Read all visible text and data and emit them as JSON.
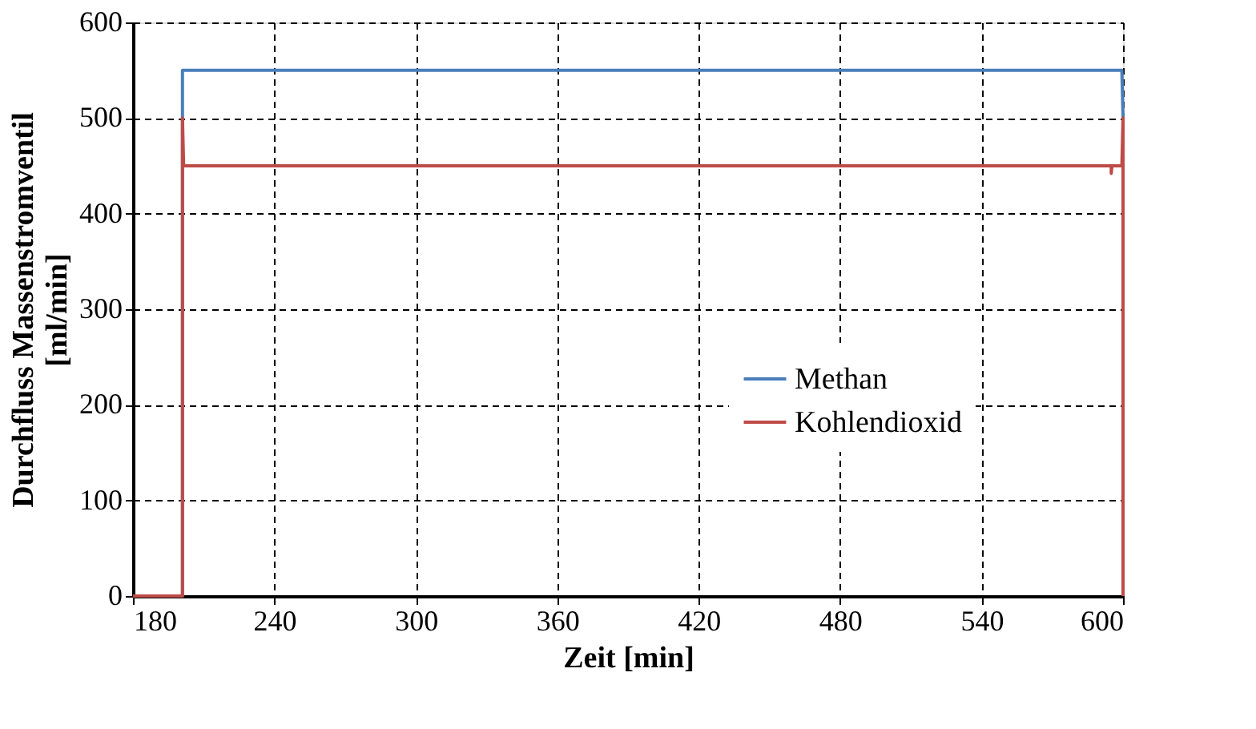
{
  "chart_data": {
    "type": "line",
    "xlabel": "Zeit [min]",
    "ylabel": "Durchfluss Massenstromventil [ml/min]",
    "xlim": [
      180,
      600
    ],
    "xticks": [
      180,
      240,
      300,
      360,
      420,
      480,
      540,
      600
    ],
    "ylim": [
      0,
      600
    ],
    "yticks": [
      0,
      100,
      200,
      300,
      400,
      500,
      600
    ],
    "grid": true,
    "legend": "right",
    "line_style": "solid",
    "marker": "none",
    "series": [
      {
        "name": "Methan",
        "color": "#4a7ebb",
        "x": [
          180,
          201,
          201,
          599.5,
          600
        ],
        "values": [
          0,
          0,
          550,
          550,
          500
        ]
      },
      {
        "name": "Kohlendioxid",
        "color": "#be4b48",
        "x": [
          180,
          201,
          201,
          201.5,
          595,
          595,
          595.3,
          599.5,
          600,
          600
        ],
        "values": [
          0,
          0,
          500,
          450,
          450,
          442,
          450,
          450,
          500,
          0
        ]
      }
    ]
  }
}
